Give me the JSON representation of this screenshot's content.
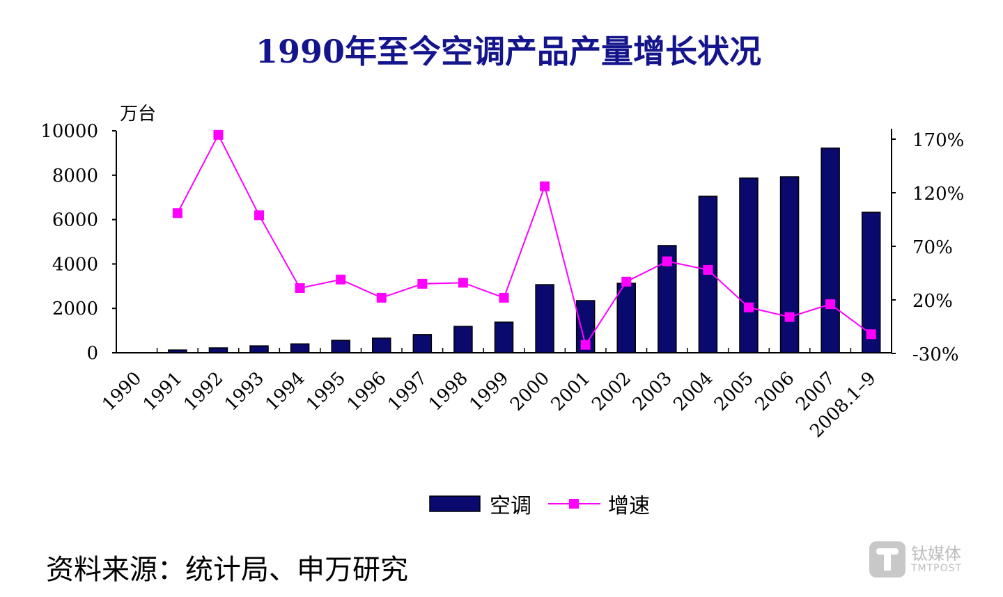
{
  "chart_data": {
    "type": "bar+line",
    "title": "1990年至今空调产品产量增长状况",
    "ylabel": "万台",
    "categories": [
      "1990",
      "1991",
      "1992",
      "1993",
      "1994",
      "1995",
      "1996",
      "1997",
      "1998",
      "1999",
      "2000",
      "2001",
      "2002",
      "2003",
      "2004",
      "2005",
      "2006",
      "2007",
      "2008.1-9"
    ],
    "y_left": {
      "ylim": [
        0,
        10000
      ],
      "ticks": [
        "0",
        "2000",
        "4000",
        "6000",
        "8000",
        "10000"
      ]
    },
    "y_right": {
      "ylim": [
        -30,
        170
      ],
      "ticks": [
        "-30%",
        "20%",
        "70%",
        "120%",
        "170%"
      ]
    },
    "series": [
      {
        "name": "空调",
        "type": "bar",
        "axis": "left",
        "color": "#0a0a6e",
        "values": [
          null,
          125,
          220,
          310,
          400,
          560,
          660,
          820,
          1190,
          1380,
          3070,
          2350,
          3130,
          4830,
          7050,
          7870,
          7930,
          9220,
          6330
        ]
      },
      {
        "name": "增速",
        "type": "line",
        "axis": "right",
        "color": "#ff00ff",
        "unit": "%",
        "values": [
          null,
          101,
          174,
          99,
          31,
          39,
          22,
          35,
          36,
          22,
          126,
          -22,
          37,
          56,
          48,
          13,
          4,
          16,
          -12
        ]
      }
    ],
    "legend": "bottom",
    "grid": false
  },
  "source": "资料来源：统计局、申万研究",
  "watermark": {
    "cn": "钛媒体",
    "en": "TMTPOST"
  }
}
